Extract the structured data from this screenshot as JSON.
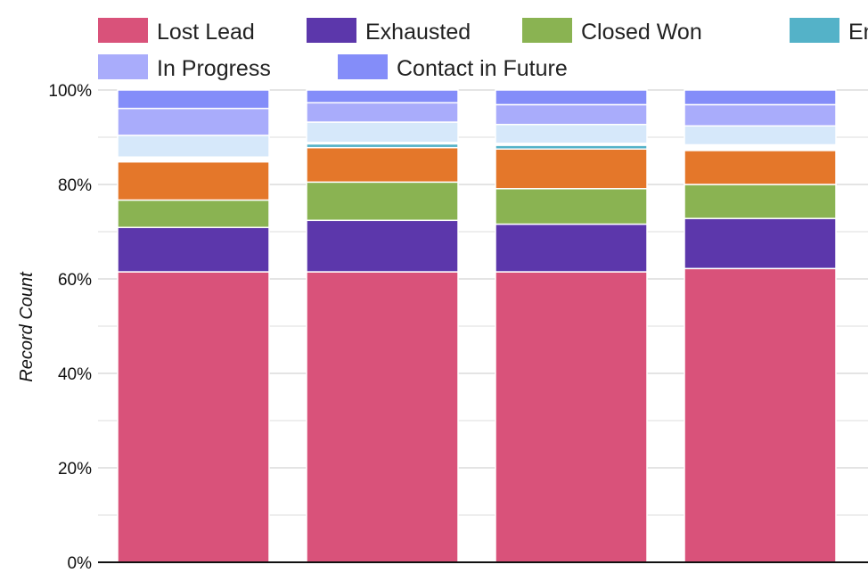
{
  "chart_data": {
    "type": "bar",
    "stacked": true,
    "normalized": true,
    "ylabel": "Record Count",
    "ylim": [
      0,
      100
    ],
    "yticks": [
      "0%",
      "20%",
      "40%",
      "60%",
      "80%",
      "100%"
    ],
    "categories": [
      "",
      "",
      "",
      ""
    ],
    "grid": true,
    "legend_position": "top",
    "series": [
      {
        "name": "Lost Lead",
        "color": "#d9527a",
        "values": [
          61.5,
          61.5,
          61.5,
          62.2
        ]
      },
      {
        "name": "Exhausted",
        "color": "#5c37ab",
        "values": [
          9.4,
          10.9,
          10.1,
          10.6
        ]
      },
      {
        "name": "Closed Won",
        "color": "#8ab352",
        "values": [
          5.8,
          8.1,
          7.5,
          7.2
        ]
      },
      {
        "name": "",
        "color": "#e4772a",
        "values": [
          8.1,
          7.3,
          8.4,
          7.2
        ]
      },
      {
        "name": "En",
        "color": "#54b2c8",
        "values": [
          0.2,
          0.8,
          0.8,
          0.0
        ]
      },
      {
        "name": "",
        "color": "#ffffff",
        "values": [
          0.8,
          0.3,
          0.4,
          1.2
        ]
      },
      {
        "name": "",
        "color": "#d6e8fa",
        "values": [
          4.6,
          4.3,
          4.0,
          4.0
        ]
      },
      {
        "name": "In Progress",
        "color": "#a9acfb",
        "values": [
          5.7,
          4.1,
          4.2,
          4.5
        ]
      },
      {
        "name": "Contact in Future",
        "color": "#848df9",
        "values": [
          3.9,
          2.7,
          3.1,
          3.1
        ]
      }
    ]
  }
}
